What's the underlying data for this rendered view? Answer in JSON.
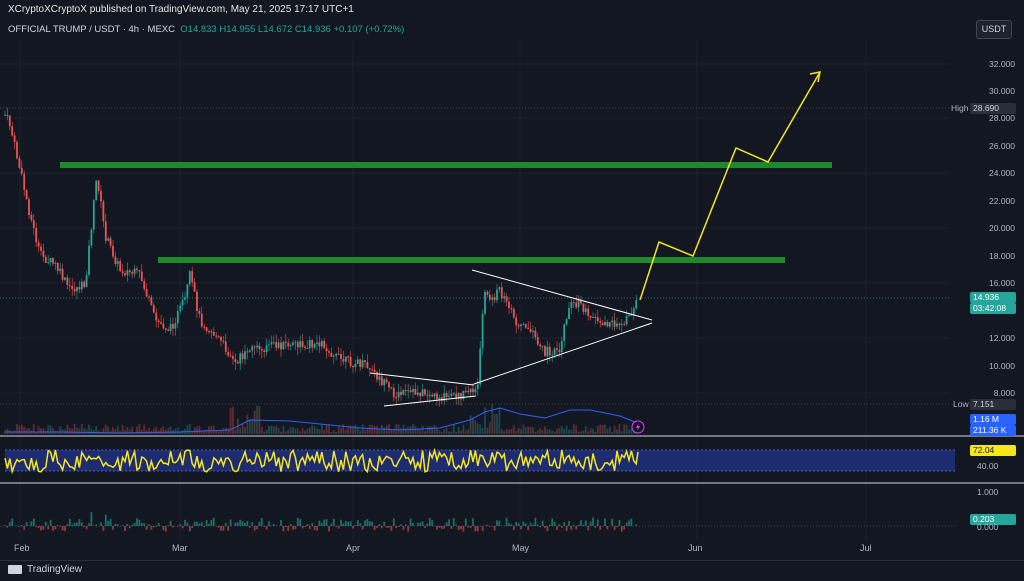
{
  "header": {
    "published": "XCryptoXCryptoX published on TradingView.com, May 21, 2025 17:17 UTC+1",
    "symbol": "OFFICIAL TRUMP / USDT · 4h · MEXC",
    "open": "O14.833",
    "high": "H14.955",
    "low": "L14.672",
    "close": "C14.936",
    "change": "+0.107 (+0.72%)",
    "currency_button": "USDT"
  },
  "price_axis": {
    "labels": [
      "32.000",
      "30.000",
      "28.000",
      "26.000",
      "24.000",
      "22.000",
      "20.000",
      "18.000",
      "16.000",
      "12.000",
      "10.000",
      "8.000"
    ],
    "high_label": "High",
    "high_value": "28.690",
    "low_label": "Low",
    "low_value": "7.151",
    "current_price": "14.936",
    "countdown": "03:42:08",
    "volume_tag_1": "1.16 M",
    "volume_tag_2": "211.36 K"
  },
  "rsi_axis": {
    "value": "72.04",
    "label_40": "40.00"
  },
  "osc_axis": {
    "label_top": "1.000",
    "value": "0.203",
    "label_zero": "0.000"
  },
  "time_axis": [
    "Feb",
    "Mar",
    "Apr",
    "May",
    "Jun",
    "Jul"
  ],
  "footer": {
    "brand": "TradingView"
  },
  "colors": {
    "background": "#131722",
    "up": "#26a69a",
    "down": "#ef5350",
    "zone": "#1e8a2c",
    "projection": "#f5e71c",
    "rsi": "#f5e71c",
    "rsi_band": "#1f2d7a",
    "volume_ma": "#2962ff"
  },
  "icons": {
    "logo": "tradingview-logo-icon",
    "flash": "lightning-icon"
  }
}
